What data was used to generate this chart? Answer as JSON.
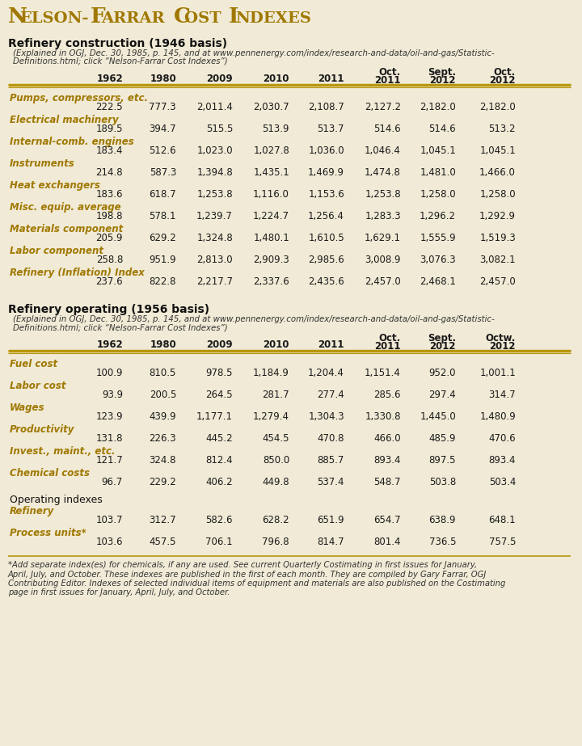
{
  "bg_color": "#f0ead6",
  "title_N": "N",
  "title_rest": "ELSON-",
  "title_F": "F",
  "title_rest2": "ARRAR ",
  "title_C": "C",
  "title_rest3": "OST ",
  "title_I": "I",
  "title_rest4": "NDEXES",
  "title_color": "#a07800",
  "section1_title": "Refinery construction (1946 basis)",
  "section1_note1": "(Explained in OGJ, Dec. 30, 1985, p. 145, and at www.pennenergy.com/index/research-and-data/oil-and-gas/Statistic-",
  "section1_note2": "Definitions.html; click “Nelson-Farrar Cost Indexes”)",
  "section2_title": "Refinery operating (1956 basis)",
  "section2_note1": "(Explained in OGJ, Dec. 30, 1985, p. 145, and at www.pennenergy.com/index/research-and-data/oil-and-gas/Statistic-",
  "section2_note2": "Definitions.html; click “Nelson-Farrar Cost Indexes”)",
  "col_headers": [
    "1962",
    "1980",
    "2009",
    "2010",
    "2011",
    "Oct.\n2011",
    "Sept.\n2012",
    "Oct.\n2012"
  ],
  "col2_last_header": "Octw.\n2012",
  "construction_rows": [
    {
      "label": "Pumps, compressors, etc.",
      "values": [
        "222.5",
        "777.3",
        "2,011.4",
        "2,030.7",
        "2,108.7",
        "2,127.2",
        "2,182.0",
        "2,182.0"
      ]
    },
    {
      "label": "Electrical machinery",
      "values": [
        "189.5",
        "394.7",
        "515.5",
        "513.9",
        "513.7",
        "514.6",
        "514.6",
        "513.2"
      ]
    },
    {
      "label": "Internal-comb. engines",
      "values": [
        "183.4",
        "512.6",
        "1,023.0",
        "1,027.8",
        "1,036.0",
        "1,046.4",
        "1,045.1",
        "1,045.1"
      ]
    },
    {
      "label": "Instruments",
      "values": [
        "214.8",
        "587.3",
        "1,394.8",
        "1,435.1",
        "1,469.9",
        "1,474.8",
        "1,481.0",
        "1,466.0"
      ]
    },
    {
      "label": "Heat exchangers",
      "values": [
        "183.6",
        "618.7",
        "1,253.8",
        "1,116.0",
        "1,153.6",
        "1,253.8",
        "1,258.0",
        "1,258.0"
      ]
    },
    {
      "label": "Misc. equip. average",
      "values": [
        "198.8",
        "578.1",
        "1,239.7",
        "1,224.7",
        "1,256.4",
        "1,283.3",
        "1,296.2",
        "1,292.9"
      ]
    },
    {
      "label": "Materials component",
      "values": [
        "205.9",
        "629.2",
        "1,324.8",
        "1,480.1",
        "1,610.5",
        "1,629.1",
        "1,555.9",
        "1,519.3"
      ]
    },
    {
      "label": "Labor component",
      "values": [
        "258.8",
        "951.9",
        "2,813.0",
        "2,909.3",
        "2,985.6",
        "3,008.9",
        "3,076.3",
        "3,082.1"
      ]
    },
    {
      "label": "Refinery (Inflation) Index",
      "values": [
        "237.6",
        "822.8",
        "2,217.7",
        "2,337.6",
        "2,435.6",
        "2,457.0",
        "2,468.1",
        "2,457.0"
      ]
    }
  ],
  "operating_rows": [
    {
      "label": "Fuel cost",
      "values": [
        "100.9",
        "810.5",
        "978.5",
        "1,184.9",
        "1,204.4",
        "1,151.4",
        "952.0",
        "1,001.1"
      ]
    },
    {
      "label": "Labor cost",
      "values": [
        "93.9",
        "200.5",
        "264.5",
        "281.7",
        "277.4",
        "285.6",
        "297.4",
        "314.7"
      ]
    },
    {
      "label": "Wages",
      "values": [
        "123.9",
        "439.9",
        "1,177.1",
        "1,279.4",
        "1,304.3",
        "1,330.8",
        "1,445.0",
        "1,480.9"
      ]
    },
    {
      "label": "Productivity",
      "values": [
        "131.8",
        "226.3",
        "445.2",
        "454.5",
        "470.8",
        "466.0",
        "485.9",
        "470.6"
      ]
    },
    {
      "label": "Invest., maint., etc.",
      "values": [
        "121.7",
        "324.8",
        "812.4",
        "850.0",
        "885.7",
        "893.4",
        "897.5",
        "893.4"
      ]
    },
    {
      "label": "Chemical costs",
      "values": [
        "96.7",
        "229.2",
        "406.2",
        "449.8",
        "537.4",
        "548.7",
        "503.8",
        "503.4"
      ]
    }
  ],
  "operating_index_label": "Operating indexes",
  "operating_index_rows": [
    {
      "label": "Refinery",
      "values": [
        "103.7",
        "312.7",
        "582.6",
        "628.2",
        "651.9",
        "654.7",
        "638.9",
        "648.1"
      ]
    },
    {
      "label": "Process units*",
      "values": [
        "103.6",
        "457.5",
        "706.1",
        "796.8",
        "814.7",
        "801.4",
        "736.5",
        "757.5"
      ]
    }
  ],
  "footnote_lines": [
    "*Add separate index(es) for chemicals, if any are used. See current Quarterly Costimating in first issues for January,",
    "April, July, and October. These indexes are published in the first of each month. They are compiled by Gary Farrar, OGJ",
    "Contributing Editor. Indexes of selected individual items of equipment and materials are also published on the Costimating",
    "page in first issues for January, April, July, and October."
  ],
  "label_color": "#a07800",
  "value_color": "#1a1a1a",
  "header_color": "#1a1a1a",
  "line_color": "#b8960c",
  "note_color": "#333333",
  "footnote_color": "#333333"
}
